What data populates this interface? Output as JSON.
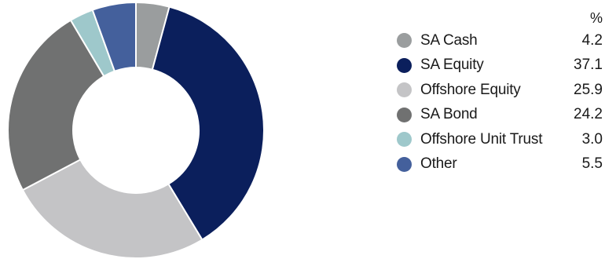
{
  "chart_data": {
    "type": "pie",
    "subtype": "donut",
    "unit_label": "%",
    "title": "",
    "legend_position": "right",
    "slices": [
      {
        "label": "SA Cash",
        "value": 4.2,
        "display": "4.2",
        "color": "#9a9d9e"
      },
      {
        "label": "SA Equity",
        "value": 37.1,
        "display": "37.1",
        "color": "#0b1f5c"
      },
      {
        "label": "Offshore Equity",
        "value": 25.9,
        "display": "25.9",
        "color": "#c4c4c6"
      },
      {
        "label": "SA Bond",
        "value": 24.2,
        "display": "24.2",
        "color": "#707171"
      },
      {
        "label": "Offshore Unit Trust",
        "value": 3.0,
        "display": "3.0",
        "color": "#9ec8cb"
      },
      {
        "label": "Other",
        "value": 5.5,
        "display": "5.5",
        "color": "#44609c"
      }
    ]
  }
}
